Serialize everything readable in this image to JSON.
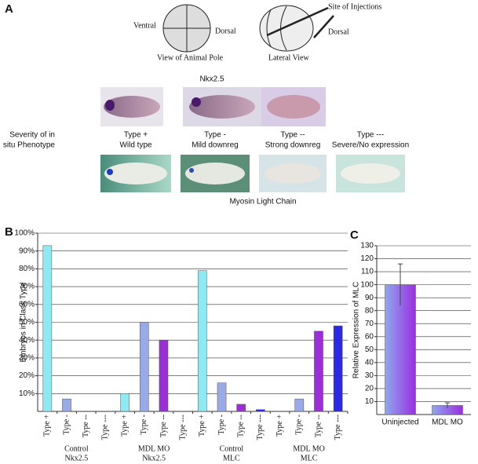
{
  "panel_a": {
    "letter": "A",
    "ventral": "Ventral",
    "dorsal_left": "Dorsal",
    "animal_pole": "View of Animal Pole",
    "site": "Site of Injections",
    "dorsal_right": "Dorsal",
    "lateral": "Lateral View",
    "nkx": "Nkx2.5",
    "severity": [
      "Severity of in",
      "situ Phenotype"
    ],
    "types": [
      [
        "Type +",
        "Wild type"
      ],
      [
        "Type -",
        "Mild downreg"
      ],
      [
        "Type --",
        "Strong downreg"
      ],
      [
        "Type ---",
        "Severe/No expression"
      ]
    ],
    "mlc": "Myosin Light Chain"
  },
  "chart_data": [
    {
      "type": "bar",
      "letter": "B",
      "ylabel": "Embryos in Class Type",
      "categories": [
        "Type +",
        "Type -",
        "Type --",
        "Type ---",
        "Type +",
        "Type -",
        "Type --",
        "Type ---",
        "Type +",
        "Type -",
        "Type --",
        "Type ---",
        "Type +",
        "Type -",
        "Type --",
        "Type ---"
      ],
      "values": [
        93,
        7,
        0,
        0,
        10,
        50,
        40,
        0,
        79,
        16,
        4,
        1,
        0,
        7,
        45,
        48
      ],
      "colors": [
        "#8eeaf2",
        "#9aaae6",
        "#9a2fd8",
        "#2a2ae6",
        "#8eeaf2",
        "#9aaae6",
        "#9a2fd8",
        "#2a2ae6",
        "#8eeaf2",
        "#9aaae6",
        "#9a2fd8",
        "#2a2ae6",
        "#8eeaf2",
        "#9aaae6",
        "#9a2fd8",
        "#2a2ae6"
      ],
      "groups": [
        [
          "Control",
          "Nkx2.5"
        ],
        [
          "MDL MO",
          "Nkx2.5"
        ],
        [
          "Control",
          "MLC"
        ],
        [
          "MDL MO",
          "MLC"
        ]
      ],
      "ylim": [
        0,
        100
      ],
      "yticks": [
        {
          "value": 10,
          "label": "10%"
        },
        {
          "value": 20,
          "label": "20%"
        },
        {
          "value": 30,
          "label": "30%"
        },
        {
          "value": 40,
          "label": "40%"
        },
        {
          "value": 50,
          "label": "50%"
        },
        {
          "value": 60,
          "label": "60%"
        },
        {
          "value": 70,
          "label": "70%"
        },
        {
          "value": 80,
          "label": "80%"
        },
        {
          "value": 90,
          "label": "90%"
        },
        {
          "value": 100,
          "label": "100%"
        }
      ],
      "grid": true
    },
    {
      "type": "bar",
      "letter": "C",
      "ylabel": "Relative Expression of MLC",
      "categories": [
        "Uninjected",
        "MDL MO"
      ],
      "values": [
        100,
        7
      ],
      "errors": [
        16,
        2
      ],
      "ylim": [
        0,
        130
      ],
      "yticks": [
        10,
        20,
        30,
        40,
        50,
        60,
        70,
        80,
        90,
        100,
        110,
        120,
        130
      ],
      "grid": true
    }
  ]
}
